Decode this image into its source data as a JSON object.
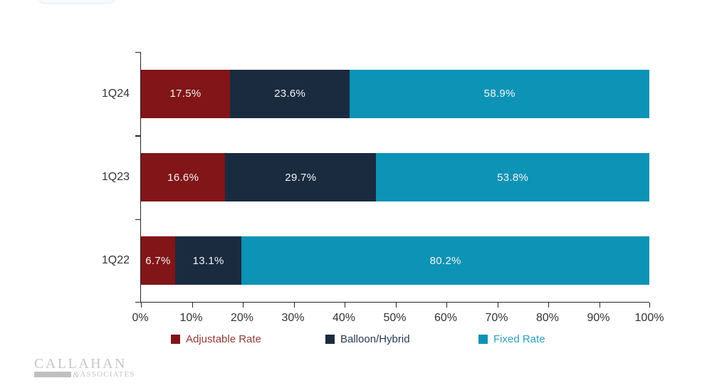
{
  "chart_data": {
    "type": "bar",
    "variant": "horizontal-stacked",
    "title": "",
    "categories": [
      "1Q24",
      "1Q23",
      "1Q22"
    ],
    "series": [
      {
        "name": "Adjustable Rate",
        "color": "#811518",
        "legend_text_color": "#8f3b3b",
        "values": [
          17.5,
          16.6,
          6.7
        ]
      },
      {
        "name": "Balloon/Hybrid",
        "color": "#1a2b40",
        "legend_text_color": "#263850",
        "values": [
          23.6,
          29.7,
          13.1
        ]
      },
      {
        "name": "Fixed Rate",
        "color": "#0c93b5",
        "legend_text_color": "#2e9ebe",
        "values": [
          58.9,
          53.8,
          80.2
        ]
      }
    ],
    "data_labels": {
      "format": "{value}%",
      "color": "#f4f4f4",
      "values_text": [
        [
          "17.5%",
          "23.6%",
          "58.9%"
        ],
        [
          "16.6%",
          "29.7%",
          "53.8%"
        ],
        [
          "6.7%",
          "13.1%",
          "80.2%"
        ]
      ]
    },
    "x_axis": {
      "min": 0,
      "max": 100,
      "tick_labels": [
        "0%",
        "10%",
        "20%",
        "30%",
        "40%",
        "50%",
        "60%",
        "70%",
        "80%",
        "90%",
        "100%"
      ],
      "axis_color": "#262626",
      "tick_label_color": "#333333"
    },
    "y_axis": {
      "axis_color": "#262626",
      "category_label_color": "#333333"
    },
    "grid": false,
    "legend_position": "bottom"
  },
  "logo": {
    "line1": "CALLAHAN",
    "amp": "&",
    "line2": "ASSOCIATES"
  }
}
